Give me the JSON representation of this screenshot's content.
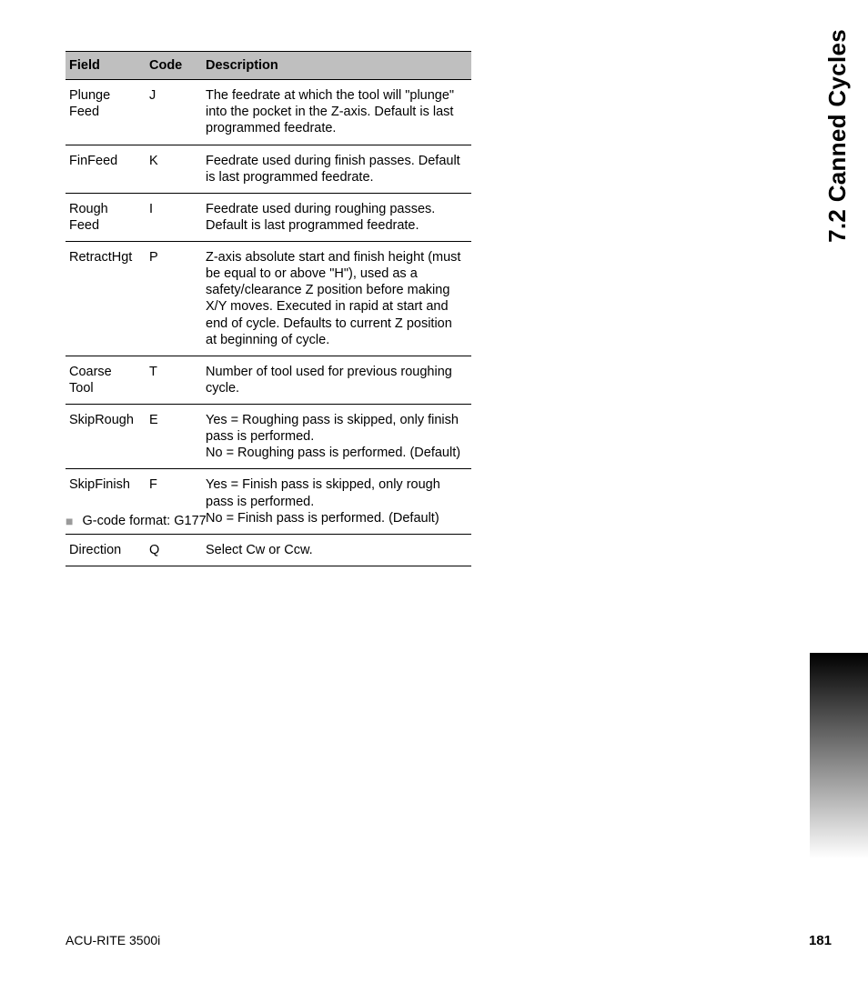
{
  "side_title": "7.2 Canned Cycles",
  "table": {
    "headers": {
      "field": "Field",
      "code": "Code",
      "desc": "Description"
    },
    "rows": [
      {
        "field": "Plunge Feed",
        "code": "J",
        "desc": "The feedrate at which the tool will \"plunge\" into the pocket in the Z-axis. Default is last programmed feedrate."
      },
      {
        "field": "FinFeed",
        "code": "K",
        "desc": "Feedrate used during finish passes. Default is last programmed feedrate."
      },
      {
        "field": "Rough Feed",
        "code": "I",
        "desc": "Feedrate used during roughing passes. Default is last programmed feedrate."
      },
      {
        "field": "RetractHgt",
        "code": "P",
        "desc": "Z-axis absolute start and finish height (must be equal to or above \"H\"), used as a safety/clearance Z position before making X/Y moves. Executed in rapid at start and end of cycle. Defaults to current Z position at beginning of cycle."
      },
      {
        "field": "Coarse Tool",
        "code": "T",
        "desc": "Number of tool used for previous roughing cycle."
      },
      {
        "field": "SkipRough",
        "code": "E",
        "desc": "Yes = Roughing pass is skipped, only finish pass is performed.\nNo = Roughing pass is performed. (Default)"
      },
      {
        "field": "SkipFinish",
        "code": "F",
        "desc": "Yes = Finish pass is skipped, only rough pass is performed.\nNo = Finish pass is performed. (Default)"
      },
      {
        "field": "Direction",
        "code": "Q",
        "desc": "Select Cw or Ccw."
      }
    ]
  },
  "note_text": "G-code format: G177",
  "footer": {
    "left": "ACU-RITE 3500i",
    "page": "181"
  },
  "colors": {
    "header_bg": "#bfbfbf",
    "border": "#000000",
    "bullet": "#9a9a9a",
    "gradient_top": "#000000",
    "gradient_bottom": "#ffffff"
  }
}
